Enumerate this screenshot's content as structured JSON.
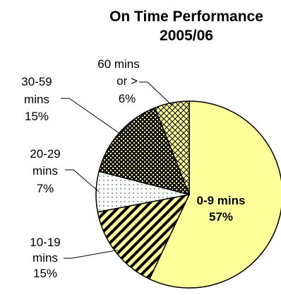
{
  "chart_data": {
    "type": "pie",
    "title": [
      "On Time Performance",
      "2005/06"
    ],
    "slices": [
      {
        "label": [
          "0-9 mins"
        ],
        "value": 57,
        "value_label": "57%",
        "color": "#ffff99",
        "pattern": "solid"
      },
      {
        "label": [
          "10-19",
          "mins"
        ],
        "value": 15,
        "value_label": "15%",
        "color": "#ffff99",
        "pattern": "diagonal-stripes"
      },
      {
        "label": [
          "20-29",
          "mins"
        ],
        "value": 7,
        "value_label": "7%",
        "color": "#ffffff",
        "pattern": "dots"
      },
      {
        "label": [
          "30-59",
          "mins"
        ],
        "value": 15,
        "value_label": "15%",
        "color": "#ffff99",
        "pattern": "checker"
      },
      {
        "label": [
          "60 mins",
          "or >"
        ],
        "value": 6,
        "value_label": "6%",
        "color": "#ffff99",
        "pattern": "crosshatch"
      }
    ]
  }
}
